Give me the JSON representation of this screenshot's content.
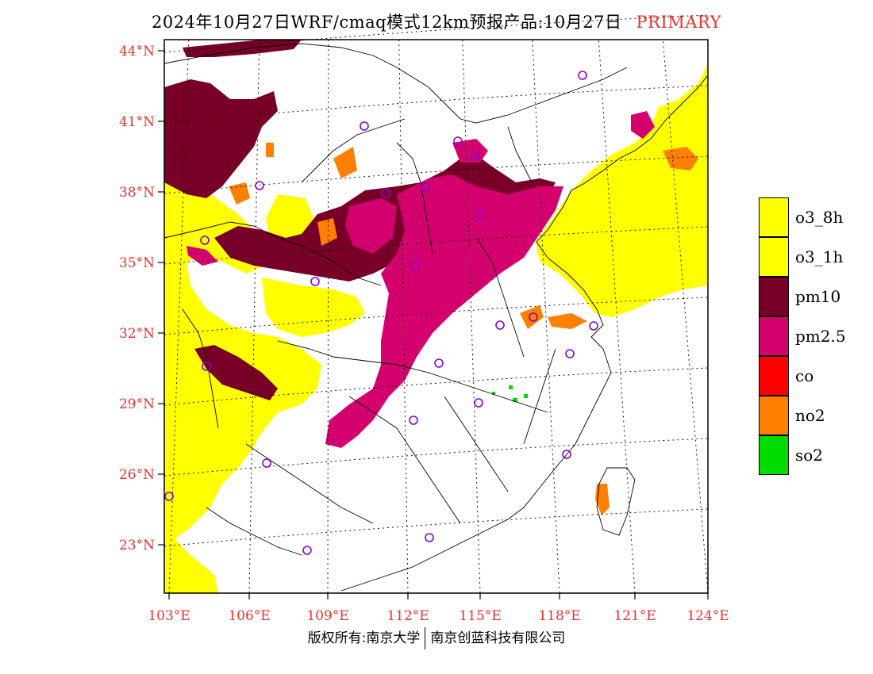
{
  "title": {
    "main": "2024年10月27日WRF/cmaq模式12km预报产品:10月27日",
    "tag": "PRIMARY"
  },
  "map": {
    "lat_labels": [
      "44°N",
      "41°N",
      "38°N",
      "35°N",
      "32°N",
      "29°N",
      "26°N",
      "23°N"
    ],
    "lon_labels": [
      "103°E",
      "106°E",
      "109°E",
      "112°E",
      "115°E",
      "118°E",
      "121°E",
      "124°E"
    ],
    "lat_values": [
      44,
      41,
      38,
      35,
      32,
      29,
      26,
      23
    ],
    "lon_values": [
      103,
      106,
      109,
      112,
      115,
      118,
      121,
      124
    ],
    "lat_range": [
      21,
      45
    ],
    "lon_range": [
      103,
      124
    ]
  },
  "legend": {
    "items": [
      {
        "label": "o3_8h",
        "color": "#ffff00"
      },
      {
        "label": "o3_1h",
        "color": "#ffff00"
      },
      {
        "label": "pm10",
        "color": "#780028"
      },
      {
        "label": "pm2.5",
        "color": "#d4006e"
      },
      {
        "label": "co",
        "color": "#ff0000"
      },
      {
        "label": "no2",
        "color": "#ff7f00"
      },
      {
        "label": "so2",
        "color": "#00dc00"
      }
    ]
  },
  "colors": {
    "o3": "#ffff00",
    "pm10": "#780028",
    "pm25": "#d4006e",
    "no2": "#ff7f00",
    "so2": "#00dc00",
    "station": "#8b00d0",
    "axis_label": "#e8322b"
  },
  "footer": {
    "left": "版权所有:南京大学",
    "right": "南京创蓝科技有限公司"
  }
}
